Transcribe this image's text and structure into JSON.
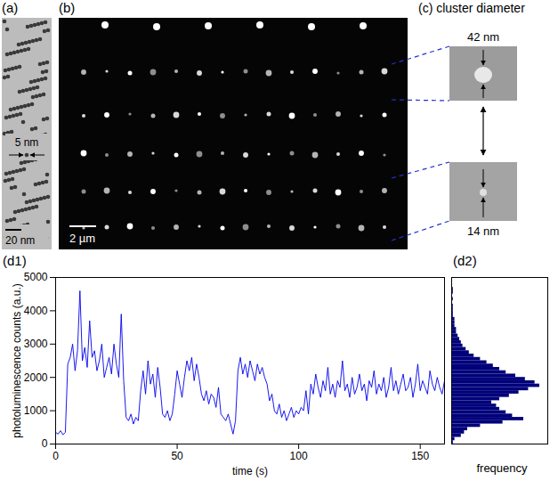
{
  "images": {
    "a": {
      "label": "(a)",
      "particle_size": "5 nm",
      "scale_bar": "20 nm"
    },
    "b": {
      "label": "(b)",
      "scale_bar": "2 µm"
    },
    "c": {
      "label": "(c) cluster diameter",
      "large": "42 nm",
      "small": "14 nm"
    }
  },
  "chart_data": [
    {
      "type": "line",
      "panel": "(d1)",
      "x_label": "time (s)",
      "y_label": "photoluminescence counts (a.u.)",
      "color": "#0000ee",
      "grid": false,
      "xlim": [
        0,
        160
      ],
      "xticks": [
        0,
        50,
        100,
        150
      ],
      "ylim": [
        0,
        5000
      ],
      "yticks": [
        0,
        1000,
        2000,
        3000,
        4000,
        5000
      ],
      "x": [
        0,
        1,
        2,
        3,
        4,
        5,
        6,
        7,
        8,
        9,
        10,
        11,
        12,
        13,
        14,
        15,
        16,
        17,
        18,
        19,
        20,
        21,
        22,
        23,
        24,
        25,
        26,
        27,
        28,
        29,
        30,
        31,
        32,
        33,
        34,
        35,
        36,
        37,
        38,
        39,
        40,
        41,
        42,
        43,
        44,
        45,
        46,
        47,
        48,
        49,
        50,
        51,
        52,
        53,
        54,
        55,
        56,
        57,
        58,
        59,
        60,
        61,
        62,
        63,
        64,
        65,
        66,
        67,
        68,
        69,
        70,
        71,
        72,
        73,
        74,
        75,
        76,
        77,
        78,
        79,
        80,
        81,
        82,
        83,
        84,
        85,
        86,
        87,
        88,
        89,
        90,
        91,
        92,
        93,
        94,
        95,
        96,
        97,
        98,
        99,
        100,
        101,
        102,
        103,
        104,
        105,
        106,
        107,
        108,
        109,
        110,
        111,
        112,
        113,
        114,
        115,
        116,
        117,
        118,
        119,
        120,
        121,
        122,
        123,
        124,
        125,
        126,
        127,
        128,
        129,
        130,
        131,
        132,
        133,
        134,
        135,
        136,
        137,
        138,
        139,
        140,
        141,
        142,
        143,
        144,
        145,
        146,
        147,
        148,
        149,
        150,
        151,
        152,
        153,
        154,
        155,
        156,
        157,
        158,
        159,
        160
      ],
      "values": [
        350,
        300,
        400,
        280,
        350,
        2400,
        2600,
        3000,
        2200,
        2800,
        4600,
        2500,
        2900,
        2300,
        3700,
        2600,
        2800,
        2200,
        2500,
        3000,
        2000,
        2300,
        2600,
        2100,
        3000,
        2400,
        2000,
        3900,
        1900,
        800,
        700,
        900,
        600,
        800,
        700,
        1600,
        2200,
        1500,
        2500,
        1800,
        2100,
        1400,
        2300,
        1700,
        900,
        800,
        1000,
        700,
        900,
        1500,
        2200,
        1800,
        1400,
        2000,
        2500,
        2200,
        2600,
        1900,
        2400,
        2000,
        1500,
        1300,
        1600,
        1200,
        1500,
        1400,
        1100,
        1700,
        900,
        800,
        700,
        900,
        600,
        300,
        700,
        2200,
        2600,
        2100,
        2400,
        2000,
        2500,
        2200,
        1900,
        2400,
        2100,
        2300,
        2000,
        1800,
        1300,
        1500,
        1000,
        900,
        1200,
        800,
        1000,
        700,
        900,
        1100,
        800,
        1000,
        900,
        1100,
        1000,
        1600,
        900,
        1800,
        1500,
        2100,
        1700,
        1400,
        1900,
        1600,
        2300,
        1500,
        1800,
        1400,
        1900,
        1700,
        2500,
        1600,
        1800,
        1400,
        2000,
        1500,
        1700,
        2100,
        1600,
        1800,
        1300,
        1900,
        1700,
        2200,
        1500,
        1800,
        1600,
        2000,
        1400,
        1700,
        2300,
        1600,
        1900,
        1500,
        1800,
        2100,
        1600,
        1700,
        2000,
        1400,
        1800,
        2400,
        1600,
        1900,
        1700,
        1500,
        2200,
        1800,
        1600,
        2000,
        1700,
        1500,
        1900
      ]
    },
    {
      "type": "histogram",
      "panel": "(d2)",
      "x_label": "frequency",
      "orientation": "horizontal",
      "color": "#00007a",
      "tick_labels": false,
      "xlim": [
        0,
        60
      ],
      "ylim": [
        0,
        5000
      ],
      "bins": [
        0,
        100,
        200,
        300,
        400,
        500,
        600,
        700,
        800,
        900,
        1000,
        1100,
        1200,
        1300,
        1400,
        1500,
        1600,
        1700,
        1800,
        1900,
        2000,
        2100,
        2200,
        2300,
        2400,
        2500,
        2600,
        2700,
        2800,
        2900,
        3000,
        3100,
        3200,
        3300,
        3400,
        3500,
        3600,
        3700,
        3800,
        3900,
        4000,
        4100,
        4200,
        4300,
        4400,
        4500,
        4600,
        4700
      ],
      "values": [
        1,
        2,
        6,
        8,
        10,
        18,
        32,
        45,
        38,
        34,
        30,
        28,
        25,
        30,
        36,
        42,
        48,
        55,
        52,
        46,
        40,
        34,
        30,
        26,
        22,
        18,
        14,
        11,
        9,
        7,
        6,
        5,
        4,
        3,
        3,
        2,
        2,
        2,
        1,
        1,
        1,
        1,
        0,
        1,
        0,
        1,
        1
      ]
    }
  ]
}
